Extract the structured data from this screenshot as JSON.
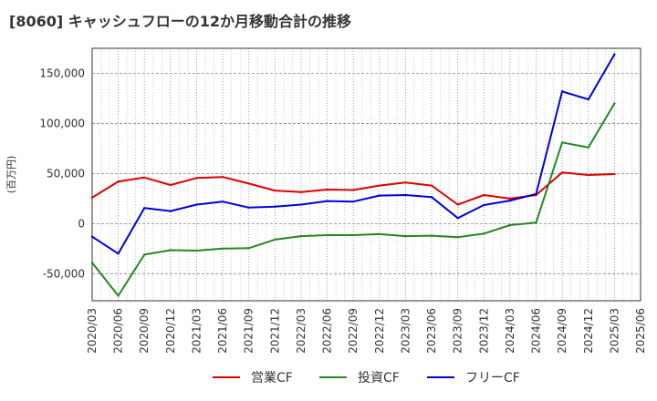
{
  "title": "[8060]  キャッシュフローの12か月移動合計の推移",
  "chart_data": {
    "type": "line",
    "title": "[8060]  キャッシュフローの12か月移動合計の推移",
    "ylabel": "(百万円)",
    "xlabel": "",
    "ylim": [
      -77000,
      175000
    ],
    "yticks": [
      -50000,
      0,
      50000,
      100000,
      150000
    ],
    "ytick_labels": [
      "-50,000",
      "0",
      "50,000",
      "100,000",
      "150,000"
    ],
    "grid": true,
    "legend_position": "bottom",
    "x": [
      "2020/03",
      "2020/06",
      "2020/09",
      "2020/12",
      "2021/03",
      "2021/06",
      "2021/09",
      "2021/12",
      "2022/03",
      "2022/06",
      "2022/09",
      "2022/12",
      "2023/03",
      "2023/06",
      "2023/09",
      "2023/12",
      "2024/03",
      "2024/06",
      "2024/09",
      "2024/12",
      "2025/03",
      "2025/06"
    ],
    "series": [
      {
        "name": "営業CF",
        "color": "#dd0000",
        "values": [
          26000,
          42000,
          46000,
          38500,
          45500,
          46500,
          40000,
          33000,
          31500,
          34000,
          33500,
          38000,
          41000,
          38000,
          19000,
          28500,
          25000,
          28500,
          51000,
          48500,
          49500,
          null
        ]
      },
      {
        "name": "投資CF",
        "color": "#228822",
        "values": [
          -39000,
          -72000,
          -31000,
          -26500,
          -27000,
          -25000,
          -24500,
          -16000,
          -12500,
          -11500,
          -11500,
          -10500,
          -12500,
          -12000,
          -13500,
          -10000,
          -1500,
          1000,
          81000,
          76000,
          120000,
          null
        ]
      },
      {
        "name": "フリーCF",
        "color": "#0000dd",
        "values": [
          -13000,
          -30000,
          15500,
          12500,
          19000,
          22000,
          16000,
          17000,
          19000,
          22500,
          22000,
          28000,
          28500,
          26500,
          5500,
          18500,
          23000,
          29500,
          132000,
          124000,
          169000,
          null
        ]
      }
    ]
  }
}
